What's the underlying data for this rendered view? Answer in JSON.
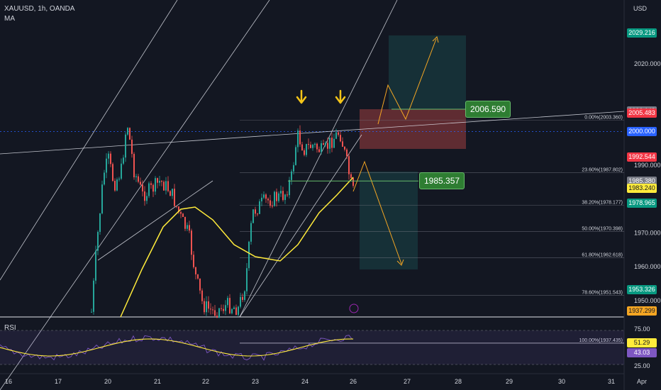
{
  "header": {
    "symbol": "XAUUSD, 1h, OANDA",
    "indicator": "MA",
    "currency": "USD",
    "rsi_label": "RSI"
  },
  "colors": {
    "background": "#131722",
    "candle_up": "#26a69a",
    "candle_down": "#ef5350",
    "ma_line": "#ffeb3b",
    "rsi_line": "#7e57c2",
    "rsi_signal": "#ffeb3b",
    "arrow": "#f5c518",
    "profit_zone": "rgba(38,166,154,0.18)",
    "loss_zone": "rgba(239,83,80,0.35)"
  },
  "chart_data": {
    "type": "candlestick",
    "x_tick_labels": [
      "16",
      "17",
      "20",
      "21",
      "22",
      "23",
      "24",
      "26",
      "27",
      "28",
      "29",
      "30",
      "31",
      "Apr"
    ],
    "y_tick_labels": [
      "2020.000",
      "1990.000",
      "1970.000",
      "1960.000",
      "1950.000"
    ],
    "y_range": [
      1935,
      2035
    ],
    "price_tags": [
      {
        "text": "2029.216",
        "value": 2029.216,
        "color": "#089981"
      },
      {
        "text": "2006.149",
        "value": 2006.149,
        "color": "#787b86"
      },
      {
        "text": "2005.483",
        "value": 2005.483,
        "color": "#f23645"
      },
      {
        "text": "2000.000",
        "value": 2000.0,
        "color": "#2962ff"
      },
      {
        "text": "1992.544",
        "value": 1992.544,
        "color": "#f23645"
      },
      {
        "text": "1985.380",
        "value": 1985.38,
        "color": "#787b86"
      },
      {
        "text": "1983.240",
        "value": 1983.24,
        "color": "#ffeb3b"
      },
      {
        "text": "1978.965",
        "value": 1978.965,
        "color": "#089981"
      },
      {
        "text": "1953.326",
        "value": 1953.326,
        "color": "#089981"
      },
      {
        "text": "1937.299",
        "value": 1937.299,
        "color": "#f5a623"
      }
    ],
    "fib_levels": [
      {
        "label": "0.00%(2003.360)",
        "value": 2003.36
      },
      {
        "label": "23.60%(1987.802)",
        "value": 1987.802
      },
      {
        "label": "38.20%(1978.177)",
        "value": 1978.177
      },
      {
        "label": "50.00%(1970.398)",
        "value": 1970.398
      },
      {
        "label": "61.80%(1962.618)",
        "value": 1962.618
      },
      {
        "label": "78.60%(1951.543)",
        "value": 1951.543
      },
      {
        "label": "100.00%(1937.435)",
        "value": 1937.435
      }
    ],
    "callouts": [
      {
        "text": "2006.590",
        "value": 2006.59
      },
      {
        "text": "1985.357",
        "value": 1985.357
      }
    ],
    "rsi": {
      "levels": [
        "75.00",
        "25.00"
      ],
      "values": [
        "51.29",
        "43.03"
      ]
    }
  }
}
